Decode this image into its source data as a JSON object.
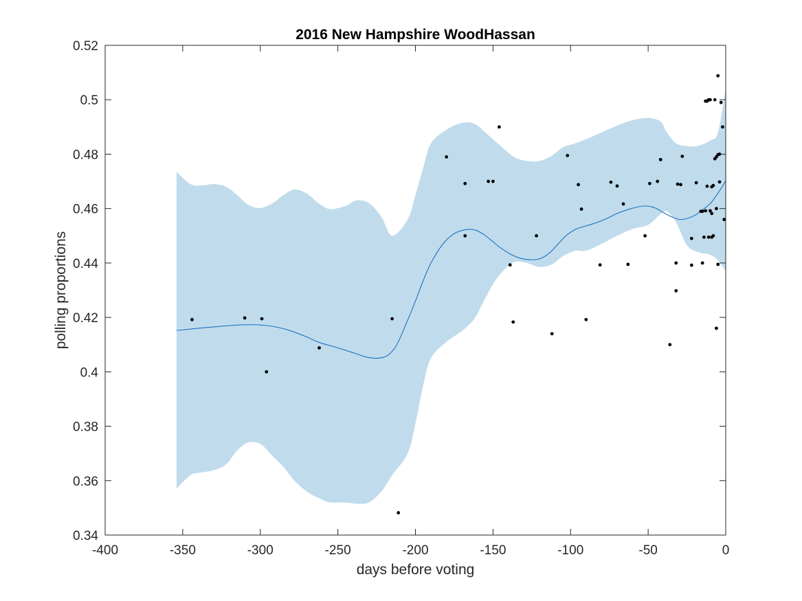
{
  "chart_data": {
    "type": "line",
    "title": "2016 New Hampshire WoodHassan",
    "xlabel": "days before voting",
    "ylabel": "polling proportions",
    "xlim": [
      -400,
      0
    ],
    "ylim": [
      0.34,
      0.52
    ],
    "xticks": [
      -400,
      -350,
      -300,
      -250,
      -200,
      -150,
      -100,
      -50,
      0
    ],
    "xtick_labels": [
      "-400",
      "-350",
      "-300",
      "-250",
      "-200",
      "-150",
      "-100",
      "-50",
      "0"
    ],
    "yticks": [
      0.34,
      0.36,
      0.38,
      0.4,
      0.42,
      0.44,
      0.46,
      0.48,
      0.5,
      0.52
    ],
    "ytick_labels": [
      "0.34",
      "0.36",
      "0.38",
      "0.4",
      "0.42",
      "0.44",
      "0.46",
      "0.48",
      "0.5",
      "0.52"
    ],
    "grid": false,
    "colors": {
      "band": "#c0dcec",
      "line": "#1f6fbf",
      "points": "#000000",
      "axes": "#262626"
    },
    "series": [
      {
        "kind": "confidence-band",
        "x": [
          -354,
          -345,
          -338,
          -330,
          -322,
          -315,
          -308,
          -300,
          -292,
          -285,
          -278,
          -270,
          -262,
          -255,
          -245,
          -238,
          -230,
          -222,
          -215,
          -205,
          -200,
          -195,
          -190,
          -180,
          -170,
          -162,
          -155,
          -148,
          -140,
          -135,
          -128,
          -120,
          -112,
          -105,
          -97,
          -90,
          -80,
          -70,
          -60,
          -50,
          -42,
          -38,
          -32,
          -25,
          -18,
          -10,
          -5,
          0
        ],
        "upper": [
          0.4735,
          0.469,
          0.4685,
          0.469,
          0.468,
          0.465,
          0.4615,
          0.4602,
          0.462,
          0.465,
          0.467,
          0.4655,
          0.4618,
          0.4598,
          0.461,
          0.463,
          0.462,
          0.457,
          0.45,
          0.456,
          0.465,
          0.475,
          0.484,
          0.489,
          0.4915,
          0.4912,
          0.488,
          0.4845,
          0.4805,
          0.4785,
          0.4775,
          0.4775,
          0.4795,
          0.4825,
          0.484,
          0.4855,
          0.488,
          0.4905,
          0.4925,
          0.4933,
          0.492,
          0.488,
          0.484,
          0.483,
          0.483,
          0.485,
          0.488,
          0.504
        ],
        "lower": [
          0.357,
          0.362,
          0.363,
          0.3638,
          0.366,
          0.371,
          0.374,
          0.3735,
          0.369,
          0.365,
          0.36,
          0.356,
          0.3535,
          0.352,
          0.352,
          0.3515,
          0.352,
          0.356,
          0.362,
          0.37,
          0.381,
          0.395,
          0.405,
          0.411,
          0.415,
          0.4195,
          0.427,
          0.434,
          0.439,
          0.4405,
          0.44,
          0.4385,
          0.4395,
          0.4425,
          0.4445,
          0.4445,
          0.447,
          0.45,
          0.4525,
          0.454,
          0.458,
          0.459,
          0.455,
          0.4465,
          0.444,
          0.443,
          0.441,
          0.437
        ]
      },
      {
        "kind": "mean-line",
        "x": [
          -354,
          -340,
          -320,
          -310,
          -300,
          -290,
          -280,
          -270,
          -262,
          -250,
          -240,
          -232,
          -225,
          -218,
          -212,
          -205,
          -200,
          -195,
          -190,
          -182,
          -175,
          -168,
          -162,
          -156,
          -150,
          -145,
          -138,
          -132,
          -126,
          -122,
          -118,
          -113,
          -108,
          -103,
          -97,
          -92,
          -85,
          -78,
          -70,
          -62,
          -55,
          -50,
          -45,
          -40,
          -35,
          -30,
          -26,
          -20,
          -15,
          -10,
          -7,
          -4,
          0
        ],
        "values": [
          0.4152,
          0.416,
          0.417,
          0.4173,
          0.4172,
          0.4165,
          0.415,
          0.4128,
          0.4108,
          0.4088,
          0.407,
          0.4055,
          0.405,
          0.406,
          0.41,
          0.419,
          0.426,
          0.4335,
          0.44,
          0.4472,
          0.4508,
          0.4522,
          0.4522,
          0.4505,
          0.4478,
          0.4455,
          0.443,
          0.4417,
          0.4412,
          0.4413,
          0.442,
          0.444,
          0.447,
          0.45,
          0.4523,
          0.4533,
          0.4545,
          0.456,
          0.4582,
          0.4598,
          0.4608,
          0.4609,
          0.4601,
          0.4585,
          0.457,
          0.456,
          0.4562,
          0.4575,
          0.4595,
          0.4618,
          0.464,
          0.4665,
          0.4702
        ]
      },
      {
        "kind": "polls",
        "points": [
          [
            -344,
            0.4192
          ],
          [
            -310,
            0.4198
          ],
          [
            -299,
            0.4195
          ],
          [
            -296,
            0.4
          ],
          [
            -262,
            0.4088
          ],
          [
            -215,
            0.4195
          ],
          [
            -211,
            0.3482
          ],
          [
            -180,
            0.479
          ],
          [
            -168,
            0.4692
          ],
          [
            -168,
            0.45
          ],
          [
            -153,
            0.47
          ],
          [
            -150,
            0.47
          ],
          [
            -146,
            0.49
          ],
          [
            -139,
            0.4393
          ],
          [
            -137,
            0.4183
          ],
          [
            -122,
            0.45
          ],
          [
            -112,
            0.414
          ],
          [
            -102,
            0.4795
          ],
          [
            -95,
            0.4688
          ],
          [
            -93,
            0.4598
          ],
          [
            -90,
            0.4192
          ],
          [
            -81,
            0.4393
          ],
          [
            -74,
            0.4697
          ],
          [
            -70,
            0.4683
          ],
          [
            -66,
            0.4617
          ],
          [
            -63,
            0.4395
          ],
          [
            -52,
            0.45
          ],
          [
            -49,
            0.4692
          ],
          [
            -44,
            0.47
          ],
          [
            -42,
            0.478
          ],
          [
            -36,
            0.41
          ],
          [
            -32,
            0.44
          ],
          [
            -32,
            0.4298
          ],
          [
            -31,
            0.469
          ],
          [
            -29,
            0.4688
          ],
          [
            -28,
            0.4792
          ],
          [
            -22,
            0.449
          ],
          [
            -22,
            0.4392
          ],
          [
            -19,
            0.4695
          ],
          [
            -16,
            0.459
          ],
          [
            -15,
            0.44
          ],
          [
            -15,
            0.459
          ],
          [
            -14,
            0.4495
          ],
          [
            -13,
            0.4995
          ],
          [
            -13,
            0.4592
          ],
          [
            -12,
            0.4995
          ],
          [
            -12,
            0.4682
          ],
          [
            -11,
            0.4495
          ],
          [
            -11,
            0.5
          ],
          [
            -10,
            0.5
          ],
          [
            -10,
            0.4592
          ],
          [
            -9,
            0.4582
          ],
          [
            -9,
            0.4495
          ],
          [
            -9,
            0.468
          ],
          [
            -8,
            0.45
          ],
          [
            -8,
            0.4685
          ],
          [
            -7,
            0.4783
          ],
          [
            -7,
            0.5
          ],
          [
            -6,
            0.46
          ],
          [
            -6,
            0.416
          ],
          [
            -6,
            0.479
          ],
          [
            -5,
            0.4798
          ],
          [
            -5,
            0.5088
          ],
          [
            -5,
            0.4395
          ],
          [
            -4,
            0.48
          ],
          [
            -4,
            0.4698
          ],
          [
            -3,
            0.499
          ],
          [
            -2,
            0.49
          ],
          [
            -1,
            0.456
          ]
        ]
      }
    ]
  }
}
